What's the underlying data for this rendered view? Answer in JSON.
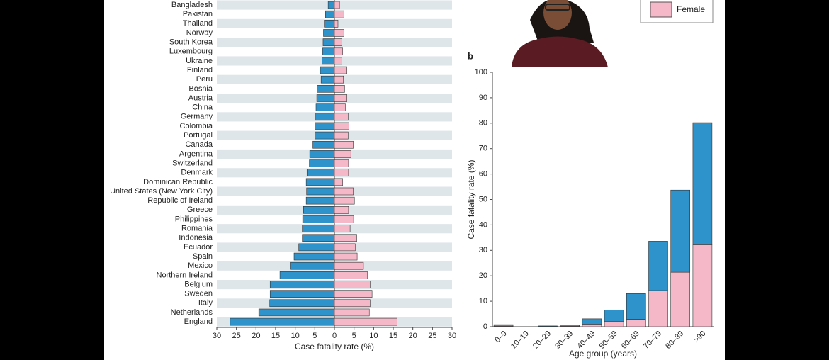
{
  "chart_data": [
    {
      "type": "bar",
      "horizontal": true,
      "xlabel": "Case fatality rate (%)",
      "categories": [
        "Bangladesh",
        "Pakistan",
        "Thailand",
        "Norway",
        "South Korea",
        "Luxembourg",
        "Ukraine",
        "Finland",
        "Peru",
        "Bosnia",
        "Austria",
        "China",
        "Germany",
        "Colombia",
        "Portugal",
        "Canada",
        "Argentina",
        "Switzerland",
        "Denmark",
        "Dominican Republic",
        "United States (New York City)",
        "Republic of Ireland",
        "Greece",
        "Philippines",
        "Romania",
        "Indonesia",
        "Ecuador",
        "Spain",
        "Mexico",
        "Northern Ireland",
        "Belgium",
        "Sweden",
        "Italy",
        "Netherlands",
        "England"
      ],
      "series": [
        {
          "color": "#2e93cb",
          "values": [
            -1.6,
            -2.3,
            -2.6,
            -2.8,
            -2.9,
            -3.0,
            -3.2,
            -3.6,
            -3.4,
            -4.4,
            -4.5,
            -4.7,
            -4.9,
            -5.0,
            -5.0,
            -5.5,
            -6.3,
            -6.4,
            -7.0,
            -7.2,
            -7.1,
            -7.2,
            -7.9,
            -8.1,
            -8.2,
            -8.2,
            -9.1,
            -10.3,
            -11.3,
            -13.9,
            -16.4,
            -16.4,
            -16.5,
            -19.3,
            -26.6
          ]
        },
        {
          "name": "Female",
          "color": "#f4b8c9",
          "values": [
            1.3,
            2.4,
            0.9,
            2.4,
            1.9,
            2.1,
            1.9,
            3.2,
            2.3,
            2.6,
            3.2,
            2.8,
            3.5,
            3.7,
            3.5,
            4.8,
            4.2,
            3.6,
            3.6,
            2.1,
            4.8,
            5.1,
            3.6,
            4.9,
            4.0,
            5.7,
            5.3,
            5.8,
            7.4,
            8.4,
            9.1,
            9.6,
            9.1,
            8.9,
            16.0
          ]
        }
      ],
      "xlim": [
        -30,
        30
      ],
      "xticks": [
        {
          "value": -30,
          "label": "30"
        },
        {
          "value": -25,
          "label": "25"
        },
        {
          "value": -20,
          "label": "20"
        },
        {
          "value": -15,
          "label": "15"
        },
        {
          "value": -10,
          "label": "10"
        },
        {
          "value": -5,
          "label": "5"
        },
        0,
        5,
        10,
        15,
        20,
        25,
        30
      ]
    },
    {
      "type": "bar",
      "stacked": true,
      "label": "b",
      "xlabel": "Age group (years)",
      "ylabel": "Case fatality rate (%)",
      "categories": [
        "0–9",
        "10–19",
        "20–29",
        "30–39",
        "40–49",
        "50–59",
        "60–69",
        "70–79",
        "80–89",
        ">90"
      ],
      "series": [
        {
          "color": "#f4b8c9",
          "values": [
            0.2,
            0,
            0.1,
            0.2,
            1.0,
            2.0,
            2.9,
            14.2,
            21.4,
            32.2
          ]
        },
        {
          "color": "#2e93cb",
          "values": [
            0.6,
            0,
            0.2,
            0.5,
            2.1,
            4.5,
            10.1,
            19.4,
            32.3,
            48.0
          ]
        }
      ],
      "ylim": [
        0,
        100
      ],
      "yticks": [
        0,
        10,
        20,
        30,
        40,
        50,
        60,
        70,
        80,
        90,
        100
      ]
    }
  ]
}
